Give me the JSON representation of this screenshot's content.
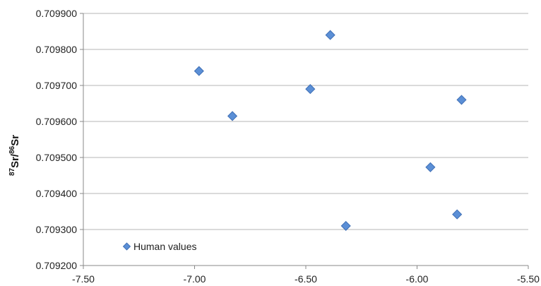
{
  "chart_data": {
    "type": "scatter",
    "title": "",
    "xlabel": "",
    "ylabel": {
      "mass1": "87",
      "el1": "Sr",
      "slash": "/",
      "mass2": "86",
      "el2": "Sr"
    },
    "xlim": [
      -7.5,
      -5.5
    ],
    "ylim": [
      0.7092,
      0.7099
    ],
    "x_ticks": [
      -7.5,
      -7.0,
      -6.5,
      -6.0,
      -5.5
    ],
    "x_tick_labels": [
      "-7.50",
      "-7.00",
      "-6.50",
      "-6.00",
      "-5.50"
    ],
    "y_ticks": [
      0.7092,
      0.7093,
      0.7094,
      0.7095,
      0.7096,
      0.7097,
      0.7098,
      0.7099
    ],
    "y_tick_labels": [
      "0.709200",
      "0.709300",
      "0.709400",
      "0.709500",
      "0.709600",
      "0.709700",
      "0.709800",
      "0.709900"
    ],
    "grid": "horizontal",
    "legend_position": "bottom-left",
    "series": [
      {
        "name": "Human values",
        "marker": "diamond",
        "color": "#5b8fd6",
        "edge_color": "#3f6fb5",
        "points": [
          {
            "x": -6.98,
            "y": 0.70974
          },
          {
            "x": -6.83,
            "y": 0.709615
          },
          {
            "x": -6.48,
            "y": 0.70969
          },
          {
            "x": -6.39,
            "y": 0.70984
          },
          {
            "x": -6.32,
            "y": 0.70931
          },
          {
            "x": -5.94,
            "y": 0.709473
          },
          {
            "x": -5.82,
            "y": 0.709342
          },
          {
            "x": -5.8,
            "y": 0.70966
          }
        ]
      }
    ]
  }
}
